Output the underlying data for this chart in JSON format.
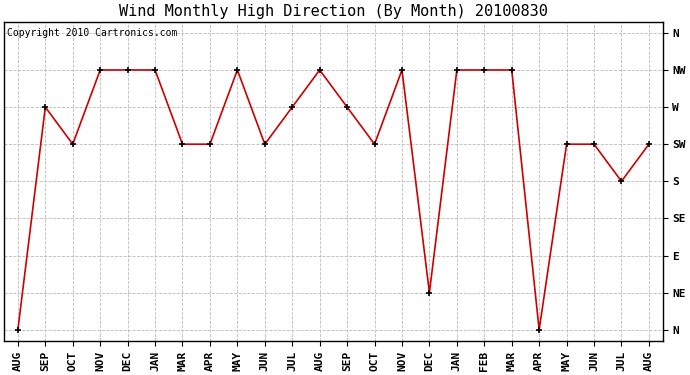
{
  "title": "Wind Monthly High Direction (By Month) 20100830",
  "copyright": "Copyright 2010 Cartronics.com",
  "x_labels": [
    "AUG",
    "SEP",
    "OCT",
    "NOV",
    "DEC",
    "JAN",
    "MAR",
    "APR",
    "MAY",
    "JUN",
    "JUL",
    "AUG",
    "SEP",
    "OCT",
    "NOV",
    "DEC",
    "JAN",
    "FEB",
    "MAR",
    "APR",
    "MAY",
    "JUN",
    "JUL",
    "AUG"
  ],
  "y_labels": [
    "N",
    "NE",
    "E",
    "SE",
    "S",
    "SW",
    "W",
    "NW",
    "N"
  ],
  "y_values": [
    0,
    1,
    2,
    3,
    4,
    5,
    6,
    7,
    8
  ],
  "data_values": [
    0,
    6,
    5,
    7,
    7,
    7,
    5,
    5,
    7,
    5,
    6,
    7,
    6,
    5,
    7,
    1,
    7,
    7,
    7,
    0,
    5,
    5,
    4,
    5
  ],
  "line_color": "#cc0000",
  "marker": "+",
  "marker_color": "#000000",
  "bg_color": "#ffffff",
  "plot_bg_color": "#ffffff",
  "grid_color": "#bbbbbb",
  "title_fontsize": 11,
  "axis_fontsize": 8,
  "copyright_fontsize": 7,
  "figwidth": 6.9,
  "figheight": 3.75,
  "dpi": 100
}
